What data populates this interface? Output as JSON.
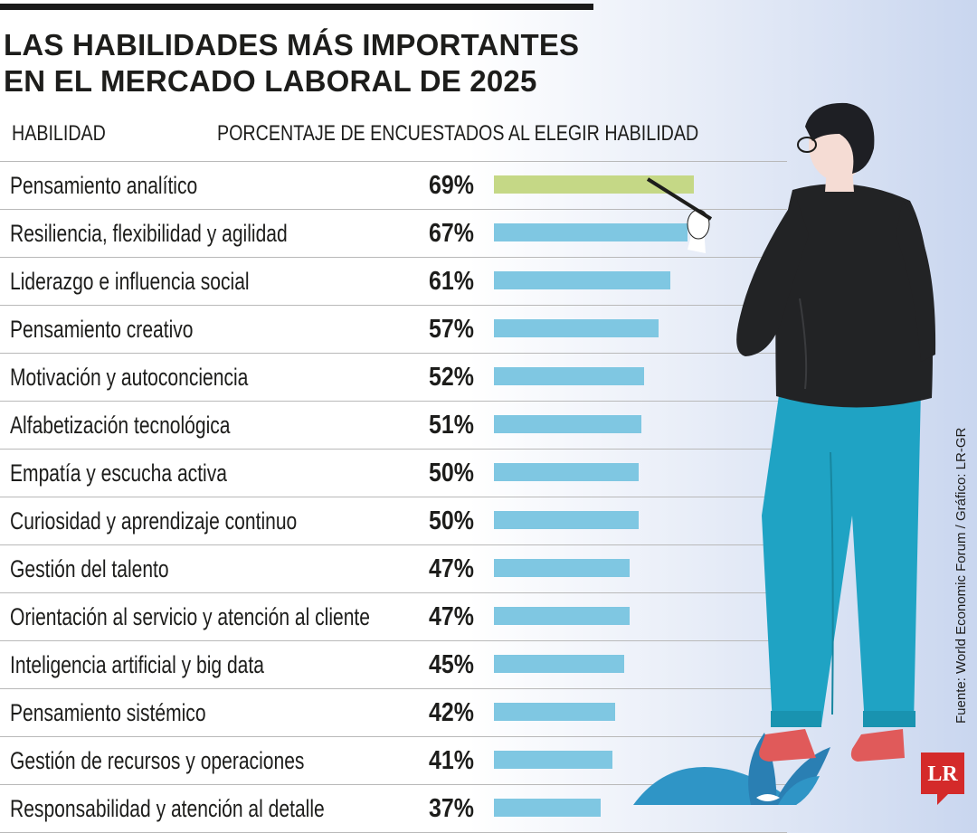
{
  "title_lines": [
    "LAS HABILIDADES MÁS IMPORTANTES",
    "EN EL MERCADO LABORAL DE 2025"
  ],
  "column_headers": {
    "left": "HABILIDAD",
    "right": "PORCENTAJE DE ENCUESTADOS AL ELEGIR HABILIDAD"
  },
  "source": "Fuente: World Economic Forum / Gráfico: LR-GR",
  "logo": {
    "text": "LR",
    "color": "#d42a2a"
  },
  "colors": {
    "highlight_bar": "#c5d886",
    "bar": "#7fc7e2"
  },
  "chart_data": {
    "type": "bar",
    "orientation": "horizontal",
    "title": "LAS HABILIDADES MÁS IMPORTANTES EN EL MERCADO LABORAL DE 2025",
    "xlabel": "PORCENTAJE DE ENCUESTADOS AL ELEGIR HABILIDAD",
    "ylabel": "HABILIDAD",
    "xlim": [
      0,
      100
    ],
    "grid": false,
    "unit": "%",
    "highlight_index": 0,
    "categories": [
      "Pensamiento analítico",
      "Resiliencia, flexibilidad y agilidad",
      "Liderazgo e influencia social",
      "Pensamiento creativo",
      "Motivación y autoconciencia",
      "Alfabetización tecnológica",
      "Empatía y escucha activa",
      "Curiosidad y aprendizaje continuo",
      "Gestión del talento",
      "Orientación al servicio y atención al cliente",
      "Inteligencia artificial y big data",
      "Pensamiento sistémico",
      "Gestión de recursos y operaciones",
      "Responsabilidad y atención al detalle"
    ],
    "values": [
      69,
      67,
      61,
      57,
      52,
      51,
      50,
      50,
      47,
      47,
      45,
      42,
      41,
      37
    ],
    "value_labels": [
      "69%",
      "67%",
      "61%",
      "57%",
      "52%",
      "51%",
      "50%",
      "50%",
      "47%",
      "47%",
      "45%",
      "42%",
      "41%",
      "37%"
    ]
  }
}
